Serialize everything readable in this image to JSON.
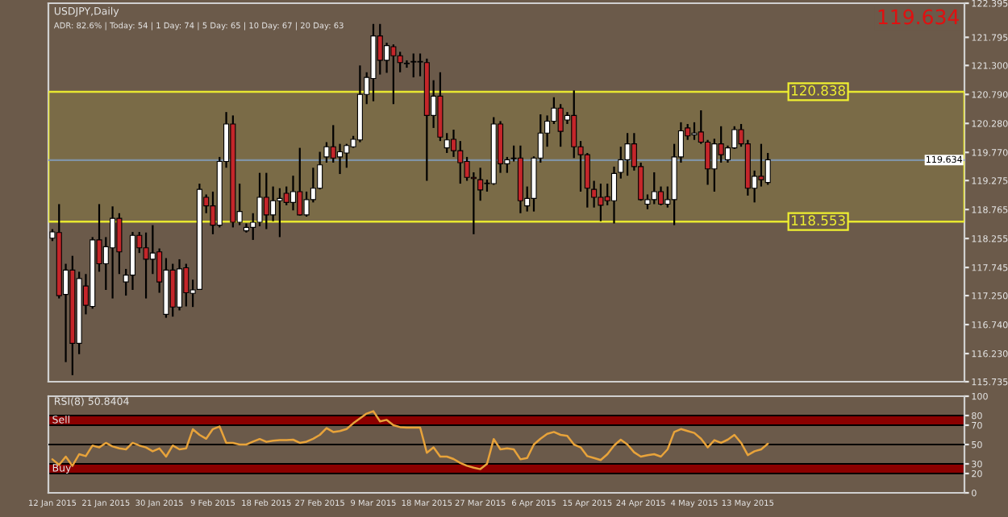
{
  "chart_data": [
    {
      "type": "candlestick",
      "title": "USDJPY,Daily",
      "tick_labels": "y",
      "categories": [
        null,
        null,
        null,
        null,
        null,
        null,
        null,
        null,
        null,
        null,
        null,
        null,
        null,
        null,
        null,
        null,
        null,
        null,
        null,
        null,
        null,
        null,
        null,
        null,
        null,
        null,
        null,
        null,
        null,
        null,
        null,
        null,
        null,
        null,
        null,
        null,
        null,
        null,
        null,
        null,
        null,
        null,
        null,
        null,
        null,
        null,
        null,
        null,
        null,
        null,
        null,
        null,
        null,
        null,
        null,
        null,
        null,
        null,
        null,
        null,
        null,
        null,
        null,
        null,
        null,
        null,
        null,
        null,
        null,
        null,
        null,
        null,
        null,
        null,
        null,
        null,
        null,
        null,
        null,
        null,
        null,
        null,
        null,
        null,
        null,
        null,
        null,
        null,
        null,
        null,
        null,
        null,
        null,
        null,
        null,
        null,
        null,
        null,
        null,
        null,
        null,
        null,
        null,
        null,
        null,
        null,
        null,
        null,
        null,
        null,
        null,
        null,
        null,
        null,
        null,
        null,
        null,
        null,
        null,
        null,
        null,
        null,
        null,
        null,
        null,
        null,
        null,
        null,
        null,
        null,
        null,
        null,
        null,
        null,
        null,
        null,
        null
      ],
      "ohlc": [
        [
          118.26,
          118.42,
          118.21,
          118.37
        ],
        [
          118.36,
          118.86,
          117.2,
          117.25
        ],
        [
          117.27,
          117.81,
          116.08,
          117.7
        ],
        [
          117.7,
          117.95,
          115.85,
          116.41
        ],
        [
          116.41,
          117.67,
          116.22,
          117.55
        ],
        [
          117.42,
          117.63,
          116.92,
          117.08
        ],
        [
          117.06,
          118.28,
          117.02,
          118.23
        ],
        [
          118.23,
          118.86,
          117.67,
          117.81
        ],
        [
          117.81,
          118.28,
          117.35,
          118.11
        ],
        [
          118.09,
          118.82,
          117.2,
          118.61
        ],
        [
          118.61,
          118.7,
          117.63,
          118.02
        ],
        [
          117.49,
          117.72,
          117.25,
          117.61
        ],
        [
          117.61,
          118.37,
          117.35,
          118.31
        ],
        [
          118.31,
          118.37,
          118.0,
          118.09
        ],
        [
          118.09,
          118.36,
          117.2,
          117.89
        ],
        [
          117.89,
          118.49,
          117.63,
          118.0
        ],
        [
          118.02,
          118.08,
          117.3,
          117.49
        ],
        [
          116.92,
          117.91,
          116.86,
          117.7
        ],
        [
          117.7,
          117.81,
          116.88,
          117.05
        ],
        [
          117.05,
          117.89,
          116.99,
          117.72
        ],
        [
          117.74,
          117.81,
          117.06,
          117.3
        ],
        [
          117.29,
          117.53,
          117.05,
          117.35
        ],
        [
          117.36,
          119.22,
          117.35,
          119.12
        ],
        [
          118.98,
          119.03,
          118.7,
          118.83
        ],
        [
          118.83,
          119.08,
          118.33,
          118.49
        ],
        [
          118.49,
          119.69,
          118.45,
          119.61
        ],
        [
          119.61,
          120.48,
          119.5,
          120.27
        ],
        [
          120.27,
          120.42,
          118.45,
          118.54
        ],
        [
          118.54,
          119.22,
          118.49,
          118.73
        ],
        [
          118.39,
          118.52,
          118.36,
          118.45
        ],
        [
          118.45,
          118.7,
          118.23,
          118.54
        ],
        [
          118.54,
          119.41,
          118.47,
          118.98
        ],
        [
          118.98,
          119.41,
          118.42,
          118.67
        ],
        [
          118.67,
          119.17,
          118.56,
          118.92
        ],
        [
          118.92,
          119.14,
          118.28,
          118.96
        ],
        [
          119.05,
          119.17,
          118.84,
          118.89
        ],
        [
          118.89,
          119.36,
          118.75,
          119.08
        ],
        [
          119.08,
          119.85,
          118.66,
          118.67
        ],
        [
          118.67,
          119.08,
          118.64,
          118.94
        ],
        [
          118.94,
          119.5,
          118.89,
          119.14
        ],
        [
          119.14,
          119.78,
          119.12,
          119.55
        ],
        [
          119.69,
          119.95,
          119.59,
          119.87
        ],
        [
          119.87,
          120.25,
          119.59,
          119.67
        ],
        [
          119.69,
          119.92,
          119.39,
          119.78
        ],
        [
          119.76,
          119.92,
          119.5,
          119.89
        ],
        [
          119.87,
          120.06,
          119.85,
          120.0
        ],
        [
          119.99,
          121.3,
          119.95,
          120.79
        ],
        [
          120.79,
          121.18,
          120.62,
          121.09
        ],
        [
          121.07,
          122.03,
          120.67,
          121.82
        ],
        [
          121.82,
          122.03,
          121.14,
          121.39
        ],
        [
          121.39,
          121.7,
          121.17,
          121.65
        ],
        [
          121.63,
          121.67,
          120.62,
          121.47
        ],
        [
          121.47,
          121.54,
          121.18,
          121.35
        ],
        [
          121.33,
          121.39,
          121.26,
          121.34
        ],
        [
          121.37,
          121.51,
          121.09,
          121.36
        ],
        [
          121.36,
          121.51,
          121.11,
          121.37
        ],
        [
          121.35,
          121.42,
          119.27,
          120.42
        ],
        [
          120.42,
          121.04,
          120.2,
          120.76
        ],
        [
          120.76,
          121.18,
          119.97,
          120.04
        ],
        [
          119.85,
          120.11,
          119.76,
          119.99
        ],
        [
          120.0,
          120.17,
          119.69,
          119.8
        ],
        [
          119.8,
          119.97,
          119.22,
          119.59
        ],
        [
          119.61,
          119.69,
          119.27,
          119.33
        ],
        [
          119.33,
          119.42,
          118.33,
          119.31
        ],
        [
          119.29,
          119.5,
          118.92,
          119.11
        ],
        [
          119.22,
          119.29,
          119.08,
          119.23
        ],
        [
          119.22,
          120.39,
          119.2,
          120.27
        ],
        [
          120.27,
          120.32,
          119.41,
          119.57
        ],
        [
          119.57,
          119.69,
          119.41,
          119.64
        ],
        [
          119.66,
          119.89,
          119.61,
          119.67
        ],
        [
          119.67,
          119.89,
          118.7,
          118.92
        ],
        [
          118.83,
          119.17,
          118.73,
          118.96
        ],
        [
          118.96,
          119.7,
          118.73,
          119.67
        ],
        [
          119.67,
          120.44,
          119.59,
          120.11
        ],
        [
          120.11,
          120.42,
          119.87,
          120.32
        ],
        [
          120.32,
          120.74,
          120.27,
          120.55
        ],
        [
          120.55,
          120.62,
          119.87,
          120.14
        ],
        [
          120.34,
          120.48,
          120.27,
          120.42
        ],
        [
          120.42,
          120.86,
          119.67,
          119.87
        ],
        [
          119.87,
          119.97,
          119.08,
          119.73
        ],
        [
          119.73,
          119.76,
          118.8,
          119.14
        ],
        [
          119.12,
          119.27,
          118.8,
          118.98
        ],
        [
          118.98,
          119.22,
          118.56,
          118.84
        ],
        [
          118.99,
          119.22,
          118.84,
          118.92
        ],
        [
          118.92,
          119.52,
          118.52,
          119.4
        ],
        [
          119.42,
          119.87,
          119.31,
          119.64
        ],
        [
          119.64,
          120.11,
          119.36,
          119.92
        ],
        [
          119.92,
          120.11,
          119.45,
          119.52
        ],
        [
          119.52,
          119.59,
          118.92,
          118.94
        ],
        [
          118.86,
          119.03,
          118.77,
          118.94
        ],
        [
          118.94,
          119.42,
          118.86,
          119.08
        ],
        [
          119.08,
          119.17,
          118.84,
          118.86
        ],
        [
          118.86,
          119.17,
          118.8,
          118.94
        ],
        [
          118.94,
          119.92,
          118.49,
          119.69
        ],
        [
          119.69,
          120.3,
          119.59,
          120.15
        ],
        [
          120.2,
          120.27,
          119.99,
          120.06
        ],
        [
          120.08,
          120.3,
          119.99,
          120.11
        ],
        [
          120.13,
          120.51,
          119.92,
          119.95
        ],
        [
          119.95,
          119.99,
          119.2,
          119.48
        ],
        [
          119.48,
          120.01,
          119.08,
          119.92
        ],
        [
          119.92,
          120.23,
          119.59,
          119.73
        ],
        [
          119.64,
          119.89,
          119.59,
          119.85
        ],
        [
          119.85,
          120.23,
          119.83,
          120.17
        ],
        [
          120.17,
          120.27,
          119.87,
          119.92
        ],
        [
          119.92,
          119.99,
          119.01,
          119.14
        ],
        [
          119.14,
          119.45,
          118.89,
          119.35
        ],
        [
          119.35,
          119.92,
          119.17,
          119.29
        ],
        [
          119.24,
          119.76,
          119.2,
          119.64
        ],
        null,
        null,
        null,
        null,
        null,
        null,
        null,
        null,
        null,
        null,
        null,
        null,
        null,
        null,
        null,
        null,
        null,
        null,
        null,
        null,
        null,
        null,
        null,
        null,
        null,
        null,
        null,
        null,
        null
      ],
      "ylim": [
        115.735,
        122.395
      ],
      "yticks": [
        {
          "value": 122.395,
          "label": "122.395"
        },
        {
          "value": 121.795,
          "label": "121.795"
        },
        {
          "value": 121.3,
          "label": "121.300"
        },
        {
          "value": 120.79,
          "label": "120.790"
        },
        {
          "value": 120.28,
          "label": "120.280"
        },
        {
          "value": 119.77,
          "label": "119.770"
        },
        {
          "value": 119.275,
          "label": "119.275"
        },
        {
          "value": 118.765,
          "label": "118.765"
        },
        {
          "value": 118.255,
          "label": "118.255"
        },
        {
          "value": 117.745,
          "label": "117.745"
        },
        {
          "value": 117.25,
          "label": "117.250"
        },
        {
          "value": 116.74,
          "label": "116.740"
        },
        {
          "value": 116.23,
          "label": "116.230"
        },
        {
          "value": 115.735,
          "label": "115.735"
        }
      ],
      "ref_lines": [
        {
          "axis": "y",
          "value": 119.634,
          "label": "119.634",
          "color": "#8093a6"
        }
      ],
      "bands": [
        {
          "axis": "y",
          "from": 118.553,
          "to": 120.838,
          "color": "#e8e830"
        }
      ],
      "annotations": [
        "ADR: 82.6% | Today: 54 | 1 Day: 74 | 5 Day: 65 | 10 Day: 67 | 20 Day: 63",
        "119.634",
        "120.838",
        "118.553"
      ]
    },
    {
      "type": "line",
      "title": "RSI(8) 50.8404",
      "categories": [
        "12 Jan 2015",
        null,
        null,
        null,
        null,
        null,
        null,
        null,
        "21 Jan 2015",
        null,
        null,
        null,
        null,
        null,
        null,
        null,
        "30 Jan 2015",
        null,
        null,
        null,
        null,
        null,
        null,
        null,
        "9 Feb 2015",
        null,
        null,
        null,
        null,
        null,
        null,
        null,
        "18 Feb 2015",
        null,
        null,
        null,
        null,
        null,
        null,
        null,
        "27 Feb 2015",
        null,
        null,
        null,
        null,
        null,
        null,
        null,
        "9 Mar 2015",
        null,
        null,
        null,
        null,
        null,
        null,
        null,
        "18 Mar 2015",
        null,
        null,
        null,
        null,
        null,
        null,
        null,
        "27 Mar 2015",
        null,
        null,
        null,
        null,
        null,
        null,
        null,
        "6 Apr 2015",
        null,
        null,
        null,
        null,
        null,
        null,
        null,
        "15 Apr 2015",
        null,
        null,
        null,
        null,
        null,
        null,
        null,
        "24 Apr 2015",
        null,
        null,
        null,
        null,
        null,
        null,
        null,
        "4 May 2015",
        null,
        null,
        null,
        null,
        null,
        null,
        null,
        "13 May 2015",
        null,
        null,
        null,
        null,
        null,
        null,
        null,
        null,
        null,
        null,
        null,
        null,
        null,
        null,
        null,
        null,
        null,
        null,
        null,
        null,
        null,
        null,
        null,
        null,
        null,
        null,
        null,
        null,
        null,
        null,
        null,
        null
      ],
      "series": [
        {
          "color": "#e8a33a",
          "values": [
            34.7,
            29,
            37.5,
            28,
            40,
            38,
            49,
            47,
            51.7,
            48,
            46,
            45,
            51.7,
            49,
            47,
            43,
            46,
            37.5,
            49,
            45,
            46,
            65.8,
            60,
            56,
            66,
            68.7,
            51.7,
            51.7,
            50,
            50,
            53,
            55.7,
            52.8,
            54,
            54.5,
            54.5,
            55,
            51.7,
            53,
            56,
            60,
            67,
            63,
            64,
            66,
            72,
            77,
            82,
            84.5,
            74,
            75.5,
            70,
            68,
            67.5,
            67.5,
            67.5,
            41.5,
            47,
            37.5,
            37.5,
            35,
            31,
            28,
            26,
            24.5,
            30,
            55.7,
            45,
            46,
            45,
            34.7,
            36,
            50,
            56,
            61,
            63,
            60,
            59,
            50,
            47,
            38,
            36,
            34,
            40,
            49,
            55,
            50,
            42,
            37.5,
            39,
            40,
            37.5,
            45,
            63,
            66,
            64,
            62,
            56,
            47,
            54.5,
            51.7,
            55,
            60,
            51.7,
            39,
            43,
            45,
            50.8,
            null,
            null,
            null,
            null,
            null,
            null,
            null,
            null,
            null,
            null,
            null,
            null,
            null,
            null,
            null,
            null,
            null,
            null,
            null,
            null,
            null,
            null,
            null,
            null,
            null,
            null,
            null,
            null,
            null
          ]
        }
      ],
      "ylim": [
        0,
        100
      ],
      "yticks": [
        100,
        80,
        70,
        50,
        30,
        20,
        0
      ],
      "ref_lines": [
        {
          "axis": "y",
          "value": 50,
          "color": "#000000"
        }
      ],
      "bands": [
        {
          "axis": "y",
          "from": 70,
          "to": 80,
          "label": "Sell",
          "color": "#8b0000"
        },
        {
          "axis": "y",
          "from": 20,
          "to": 30,
          "label": "Buy",
          "color": "#8b0000"
        }
      ]
    }
  ]
}
